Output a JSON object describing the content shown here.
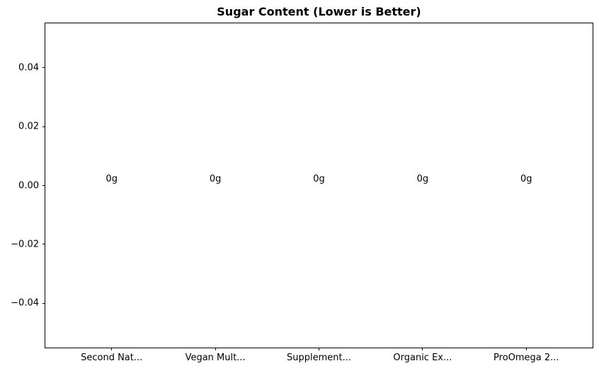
{
  "chart_data": {
    "type": "bar",
    "title": "Sugar Content (Lower is Better)",
    "categories": [
      "Second Nat...",
      "Vegan Mult...",
      "Supplement...",
      "Organic Ex...",
      "ProOmega 2..."
    ],
    "values": [
      0,
      0,
      0,
      0,
      0
    ],
    "bar_labels": [
      "0g",
      "0g",
      "0g",
      "0g",
      "0g"
    ],
    "unit": "g",
    "xlabel": "",
    "ylabel": "",
    "yticks": [
      0.04,
      0.02,
      0.0,
      -0.02,
      -0.04
    ],
    "yticklabels": [
      "0.04",
      "0.02",
      "0.00",
      "−0.02",
      "−0.04"
    ],
    "ylim": [
      -0.055,
      0.055
    ],
    "xlim": [
      -0.64,
      4.64
    ],
    "grid": false,
    "legend": false,
    "colors": {
      "background": "#ffffff",
      "text": "#000000",
      "spine": "#000000"
    }
  }
}
